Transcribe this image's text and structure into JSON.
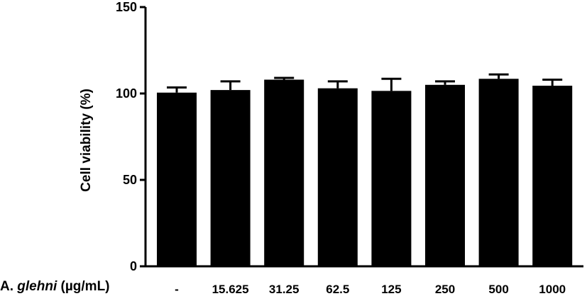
{
  "chart_data": {
    "type": "bar",
    "title": "",
    "xlabel": {
      "prefix": "A. ",
      "italic": "glehni",
      "suffix": " (µg/mL)"
    },
    "ylabel": "Cell viability (%)",
    "ylim": [
      0,
      150
    ],
    "yticks": [
      0,
      50,
      100,
      150
    ],
    "categories": [
      "-",
      "15.625",
      "31.25",
      "62.5",
      "125",
      "250",
      "500",
      "1000"
    ],
    "values": [
      100.5,
      102,
      108,
      103,
      101.5,
      105,
      108.5,
      104.5
    ],
    "errors": [
      3,
      5,
      1,
      4,
      7,
      2,
      2.5,
      3.5
    ],
    "bar_color": "#000000"
  }
}
